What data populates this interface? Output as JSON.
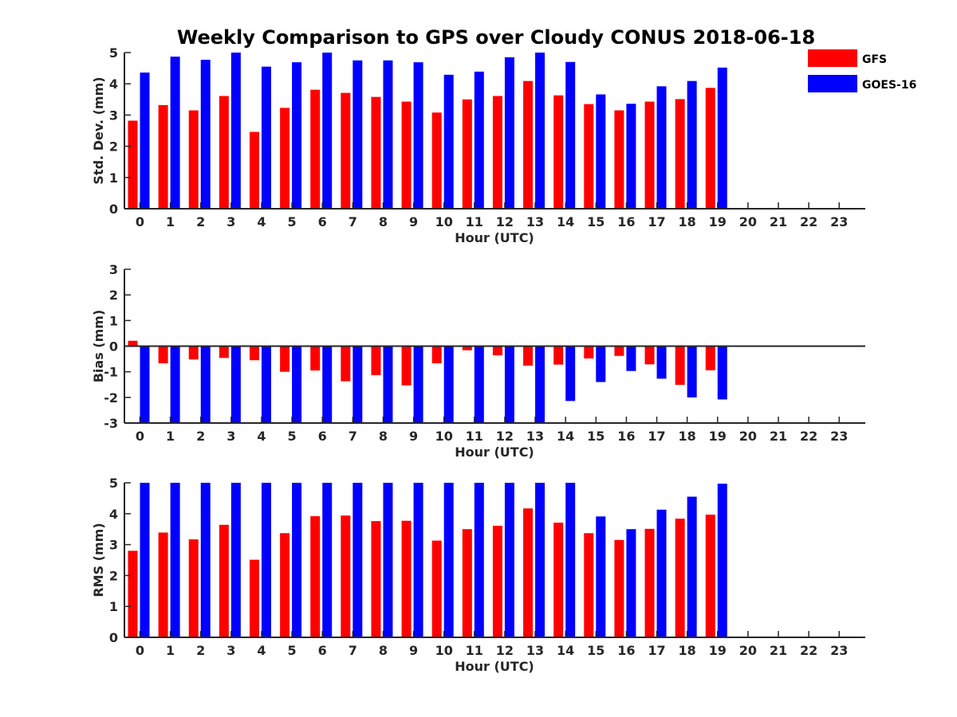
{
  "title": "Weekly Comparison to GPS over Cloudy CONUS 2018-06-18",
  "colors": {
    "GFS": "#ff0000",
    "GOES-16": "#0000ff"
  },
  "legend": [
    {
      "name": "GFS",
      "color": "#ff0000"
    },
    {
      "name": "GOES-16",
      "color": "#0000ff"
    }
  ],
  "chart_data": [
    {
      "type": "bar",
      "ylabel": "Std. Dev. (mm)",
      "xlabel": "Hour (UTC)",
      "ylim": [
        0,
        5
      ],
      "yticks": [
        0,
        1,
        2,
        3,
        4,
        5
      ],
      "categories": [
        "0",
        "1",
        "2",
        "3",
        "4",
        "5",
        "6",
        "7",
        "8",
        "9",
        "10",
        "11",
        "12",
        "13",
        "14",
        "15",
        "16",
        "17",
        "18",
        "19",
        "20",
        "21",
        "22",
        "23"
      ],
      "series": [
        {
          "name": "GFS",
          "values": [
            2.82,
            3.32,
            3.15,
            3.61,
            2.46,
            3.23,
            3.81,
            3.71,
            3.58,
            3.43,
            3.08,
            3.5,
            3.61,
            4.09,
            3.63,
            3.35,
            3.15,
            3.43,
            3.51,
            3.87,
            null,
            null,
            null,
            null
          ]
        },
        {
          "name": "GOES-16",
          "values": [
            4.36,
            4.87,
            4.77,
            5.0,
            4.55,
            4.69,
            5.0,
            4.75,
            4.75,
            4.69,
            4.29,
            4.39,
            4.85,
            5.0,
            4.7,
            3.66,
            3.36,
            3.92,
            4.09,
            4.52,
            null,
            null,
            null,
            null
          ]
        }
      ]
    },
    {
      "type": "bar",
      "ylabel": "Bias (mm)",
      "xlabel": "Hour (UTC)",
      "ylim": [
        -3,
        3
      ],
      "yticks": [
        -3,
        -2,
        -1,
        0,
        1,
        2,
        3
      ],
      "categories": [
        "0",
        "1",
        "2",
        "3",
        "4",
        "5",
        "6",
        "7",
        "8",
        "9",
        "10",
        "11",
        "12",
        "13",
        "14",
        "15",
        "16",
        "17",
        "18",
        "19",
        "20",
        "21",
        "22",
        "23"
      ],
      "series": [
        {
          "name": "GFS",
          "values": [
            0.21,
            -0.67,
            -0.52,
            -0.46,
            -0.55,
            -1.0,
            -0.95,
            -1.37,
            -1.13,
            -1.53,
            -0.67,
            -0.16,
            -0.36,
            -0.76,
            -0.72,
            -0.48,
            -0.38,
            -0.71,
            -1.51,
            -0.94,
            null,
            null,
            null,
            null
          ]
        },
        {
          "name": "GOES-16",
          "values": [
            -3.0,
            -3.0,
            -3.0,
            -3.0,
            -3.0,
            -3.0,
            -3.0,
            -3.0,
            -3.0,
            -3.0,
            -3.0,
            -3.0,
            -3.0,
            -3.0,
            -2.14,
            -1.4,
            -0.97,
            -1.27,
            -2.0,
            -2.08,
            null,
            null,
            null,
            null
          ]
        }
      ]
    },
    {
      "type": "bar",
      "ylabel": "RMS (mm)",
      "xlabel": "Hour (UTC)",
      "ylim": [
        0,
        5
      ],
      "yticks": [
        0,
        1,
        2,
        3,
        4,
        5
      ],
      "categories": [
        "0",
        "1",
        "2",
        "3",
        "4",
        "5",
        "6",
        "7",
        "8",
        "9",
        "10",
        "11",
        "12",
        "13",
        "14",
        "15",
        "16",
        "17",
        "18",
        "19",
        "20",
        "21",
        "22",
        "23"
      ],
      "series": [
        {
          "name": "GFS",
          "values": [
            2.8,
            3.39,
            3.17,
            3.64,
            2.51,
            3.37,
            3.92,
            3.94,
            3.76,
            3.77,
            3.13,
            3.5,
            3.61,
            4.17,
            3.71,
            3.37,
            3.15,
            3.51,
            3.84,
            3.97,
            null,
            null,
            null,
            null
          ]
        },
        {
          "name": "GOES-16",
          "values": [
            5.0,
            5.0,
            5.0,
            5.0,
            5.0,
            5.0,
            5.0,
            5.0,
            5.0,
            5.0,
            5.0,
            5.0,
            5.0,
            5.0,
            5.0,
            3.91,
            3.5,
            4.13,
            4.55,
            4.97,
            null,
            null,
            null,
            null
          ]
        }
      ]
    }
  ]
}
